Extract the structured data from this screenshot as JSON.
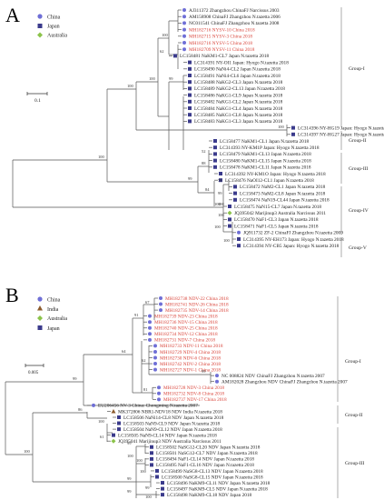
{
  "panels": [
    {
      "letter": "A",
      "legend": [
        {
          "label": "China",
          "marker": "circle",
          "color": "#6f6fd6"
        },
        {
          "label": "Japan",
          "marker": "square",
          "color": "#3b3b8c"
        },
        {
          "label": "Australia",
          "marker": "diamond",
          "color": "#8bc34a"
        }
      ],
      "scale_label": "0.1",
      "leaves": [
        {
          "text": "AJ311372 Zhangzhou ChinaFJ Narcissus 2003",
          "color": "#222222",
          "marker": "circle"
        },
        {
          "text": "AM158908 ChinaFJ Zhangzhou N.tazetta 2006",
          "color": "#222222",
          "marker": "circle"
        },
        {
          "text": "NC011541 ChinaFJ Zhangzhou N.tazetta 2008",
          "color": "#222222",
          "marker": "circle"
        },
        {
          "text": "MH182716 NYSV-10 China 2018",
          "color": "#d9443a",
          "marker": "circle"
        },
        {
          "text": "MH182715 NYSV-3 China 2018",
          "color": "#d9443a",
          "marker": "circle"
        },
        {
          "text": "MH182716 NYSV-5 China 2018",
          "color": "#d9443a",
          "marker": "circle"
        },
        {
          "text": "MH182709 NYSV-11 China 2018",
          "color": "#d9443a",
          "marker": "circle"
        },
        {
          "text": "LC158481 NaKM1-CL7 Japan N.tazetta 2018",
          "color": "#222222",
          "marker": "square"
        },
        {
          "text": "LC314391 NY-OI1 Japan: Hyogo N.tazetta 2018",
          "color": "#222222",
          "marker": "square"
        },
        {
          "text": "LC158490 NaNi4-CL2 Japan N.tazetta 2018",
          "color": "#222222",
          "marker": "square"
        },
        {
          "text": "LC158491 NaNi4-CL6 Japan N.tazetta 2018",
          "color": "#222222",
          "marker": "square"
        },
        {
          "text": "LC158488 NaKG2-CL3 Japan N.tazetta 2018",
          "color": "#222222",
          "marker": "square"
        },
        {
          "text": "LC158489 NaKG2-CL13 Japan N.tazetta 2018",
          "color": "#222222",
          "marker": "square"
        },
        {
          "text": "LC158486 NaKG1-CL9 Japan N.tazetta 2018",
          "color": "#222222",
          "marker": "square"
        },
        {
          "text": "LC158482 NaKG1-CL2 Japan N.tazetta 2018",
          "color": "#222222",
          "marker": "square"
        },
        {
          "text": "LC158484 NaKG1-CL4 Japan N.tazetta 2018",
          "color": "#222222",
          "marker": "square"
        },
        {
          "text": "LC158485 NaKG1-CL8 Japan N.tazetta 2018",
          "color": "#222222",
          "marker": "square"
        },
        {
          "text": "LC158483 NaKG1-CL3 Japan N.tazetta 2018",
          "color": "#222222",
          "marker": "square"
        },
        {
          "text": "LC314396 NY-HG19 Japan: Hyogo N.tazetta 2018",
          "color": "#222222",
          "marker": "square"
        },
        {
          "text": "LC314397 NY-HG27 Japan: Hyogo N.tazetta 2018",
          "color": "#222222",
          "marker": "square"
        },
        {
          "text": "LC158477 NaKM1-CL1 Japan N.tazetta 2018",
          "color": "#222222",
          "marker": "square"
        },
        {
          "text": "LC314393 NY-KM1P Japan: Hyogo N.tazetta 2018",
          "color": "#222222",
          "marker": "square"
        },
        {
          "text": "LC158479 NaKM1-CL13 Japan N.tazetta 2018",
          "color": "#222222",
          "marker": "square"
        },
        {
          "text": "LC158480 NaKM1-CL15 Japan N.tazetta 2018",
          "color": "#222222",
          "marker": "square"
        },
        {
          "text": "LC158478 NaKM1-CL11 Japan N.tazetta 2018",
          "color": "#222222",
          "marker": "square"
        },
        {
          "text": "LC314392 NY-KM1O Japan: Hyogo N.tazetta 2018",
          "color": "#222222",
          "marker": "square"
        },
        {
          "text": "LC158476 NaOI12-CL1 Japan N.tazetta 2018",
          "color": "#222222",
          "marker": "square"
        },
        {
          "text": "LC158472 NaM2-CL1 Japan N.tazetta 2018",
          "color": "#222222",
          "marker": "square"
        },
        {
          "text": "LC158473 NaM2-CL8 Japan N.tazetta 2018",
          "color": "#222222",
          "marker": "square"
        },
        {
          "text": "LC158474 NaN19-CL44 Japan N.tazetta 2018",
          "color": "#222222",
          "marker": "square"
        },
        {
          "text": "LC158475 NaN15-CL7 Japan N.tazetta 2018",
          "color": "#222222",
          "marker": "square"
        },
        {
          "text": "JQ395042 Marijinup3 Australia Narcissus 2011",
          "color": "#222222",
          "marker": "diamond"
        },
        {
          "text": "LC158470 NaF1-CL3 Japan N.tazetta 2018",
          "color": "#222222",
          "marker": "square"
        },
        {
          "text": "LC158471 NaF1-CL5 Japan N.tazetta 2018",
          "color": "#222222",
          "marker": "square"
        },
        {
          "text": "JQ911732 ZF-2 ChinaFJ Zhangzhou N.tazetta 2009",
          "color": "#222222",
          "marker": "circle"
        },
        {
          "text": "LC314395 NY-EH173 Japan: Hyogo N.tazetta 2018",
          "color": "#222222",
          "marker": "square"
        },
        {
          "text": "LC314394 NY-CB5 Japan: Hyogo N.tazetta 2018",
          "color": "#222222",
          "marker": "square"
        }
      ],
      "groups": [
        {
          "label": "Group-I"
        },
        {
          "label": "Group-II"
        },
        {
          "label": "Group-III"
        },
        {
          "label": "Group-IV"
        },
        {
          "label": "Group-V"
        }
      ],
      "bootstrap": [
        "100",
        "100",
        "100",
        "62",
        "99",
        "100",
        "100",
        "99",
        "88",
        "52",
        "84",
        "78",
        "99",
        "100",
        "100",
        "100",
        "100",
        "100"
      ]
    },
    {
      "letter": "B",
      "legend": [
        {
          "label": "China",
          "marker": "circle",
          "color": "#6f6fd6"
        },
        {
          "label": "India",
          "marker": "triangle",
          "color": "#8b5a2b"
        },
        {
          "label": "Australia",
          "marker": "diamond",
          "color": "#8bc34a"
        },
        {
          "label": "Japan",
          "marker": "square",
          "color": "#3b3b8c"
        }
      ],
      "scale_label": "0.005",
      "leaves": [
        {
          "text": "MH182738 NDV-22 China 2018",
          "color": "#d9443a",
          "marker": "circle"
        },
        {
          "text": "MH182741 NDV-26 China 2018",
          "color": "#d9443a",
          "marker": "circle"
        },
        {
          "text": "MH182735 NDV-14 China 2018",
          "color": "#d9443a",
          "marker": "circle"
        },
        {
          "text": "MH182739 NDV-23 China 2018",
          "color": "#d9443a",
          "marker": "circle"
        },
        {
          "text": "MH182736 NDV-15 China 2018",
          "color": "#d9443a",
          "marker": "circle"
        },
        {
          "text": "MH182740 NDV-25 China 2018",
          "color": "#d9443a",
          "marker": "circle"
        },
        {
          "text": "MH182734 NDV-12 China 2018",
          "color": "#d9443a",
          "marker": "circle"
        },
        {
          "text": "MH182731 NDV-7 China 2018",
          "color": "#d9443a",
          "marker": "circle"
        },
        {
          "text": "MH182733 NDV-11 China 2018",
          "color": "#d9443a",
          "marker": "circle"
        },
        {
          "text": "MH182729 NDV-4 China 2018",
          "color": "#d9443a",
          "marker": "circle"
        },
        {
          "text": "MH182730 NDV-6 China 2018",
          "color": "#d9443a",
          "marker": "circle"
        },
        {
          "text": "MH182742 NDV-2 China 2018",
          "color": "#d9443a",
          "marker": "circle"
        },
        {
          "text": "MH182727 NDV-1 China 2018",
          "color": "#d9443a",
          "marker": "circle"
        },
        {
          "text": "NC 008824 NDV ChinaFJ Zhangzhou N.tazetta 2007",
          "color": "#222222",
          "marker": "circle"
        },
        {
          "text": "AM182028 Zhangzhou NDV ChinaFJ Zhangzhou N.tazetta 2007",
          "color": "#222222",
          "marker": "circle"
        },
        {
          "text": "MH182728 NDV-3 China 2018",
          "color": "#d9443a",
          "marker": "circle"
        },
        {
          "text": "MH182732 NDV-8 China 2018",
          "color": "#d9443a",
          "marker": "circle"
        },
        {
          "text": "MH182737 NDV-17 China 2018",
          "color": "#d9443a",
          "marker": "circle"
        },
        {
          "text": "EU206456 NV-3 China: Chongming N.tazetta 2007",
          "color": "#222222",
          "marker": "circle"
        },
        {
          "text": "MK372806 NBR1-NDV18 NDV India N.tazetta 2018",
          "color": "#222222",
          "marker": "triangle"
        },
        {
          "text": "LC158506 NaNi14-CL8 NDV Japan N.tazetta 2018",
          "color": "#222222",
          "marker": "square"
        },
        {
          "text": "LC158503 NaN9-CL9 NDV Japan N.tazetta 2018",
          "color": "#222222",
          "marker": "square"
        },
        {
          "text": "LC158504 NaN9-CL12 NDV Japan N.tazetta 2018",
          "color": "#222222",
          "marker": "square"
        },
        {
          "text": "LC158505 NaN9-CL14 NDV Japan N.tazetta 2018",
          "color": "#222222",
          "marker": "square"
        },
        {
          "text": "JQ395041 Marijinup3 NDV Australia Narcissus 2011",
          "color": "#222222",
          "marker": "diamond"
        },
        {
          "text": "LC158502 NaSG12-CL20 NDV Japan N.tazetta 2018",
          "color": "#222222",
          "marker": "square"
        },
        {
          "text": "LC158501 NaSG12-CL7 NDV Japan N.tazetta 2018",
          "color": "#222222",
          "marker": "square"
        },
        {
          "text": "LC158494 NaF1-CL14 NDV Japan N.tazetta 2018",
          "color": "#222222",
          "marker": "square"
        },
        {
          "text": "LC158495 NaF1-CL16 NDV Japan N.tazetta 2018",
          "color": "#222222",
          "marker": "square"
        },
        {
          "text": "LC158499 NaSG8-CL13 NDV Japan N.tazetta 2018",
          "color": "#222222",
          "marker": "square"
        },
        {
          "text": "LC158500 NaSG8-CL15 NDV Japan N.tazetta 2018",
          "color": "#222222",
          "marker": "square"
        },
        {
          "text": "LC158496 NaKM9-CL11 NDV Japan N.tazetta 2018",
          "color": "#222222",
          "marker": "square"
        },
        {
          "text": "LC158497 NaKM9-CL5 NDV Japan N.tazetta 2018",
          "color": "#222222",
          "marker": "square"
        },
        {
          "text": "LC158498 NaKM9-CL18 NDV Japan 2018",
          "color": "#222222",
          "marker": "square"
        }
      ],
      "groups": [
        {
          "label": "Group-I"
        },
        {
          "label": "Group-II"
        },
        {
          "label": "Group-III"
        }
      ],
      "bootstrap": [
        "67",
        "91",
        "64",
        "99",
        "62",
        "81",
        "99",
        "86",
        "100",
        "61",
        "100",
        "99",
        "100",
        "100",
        "99",
        "100",
        "99",
        "99",
        "100"
      ]
    }
  ]
}
